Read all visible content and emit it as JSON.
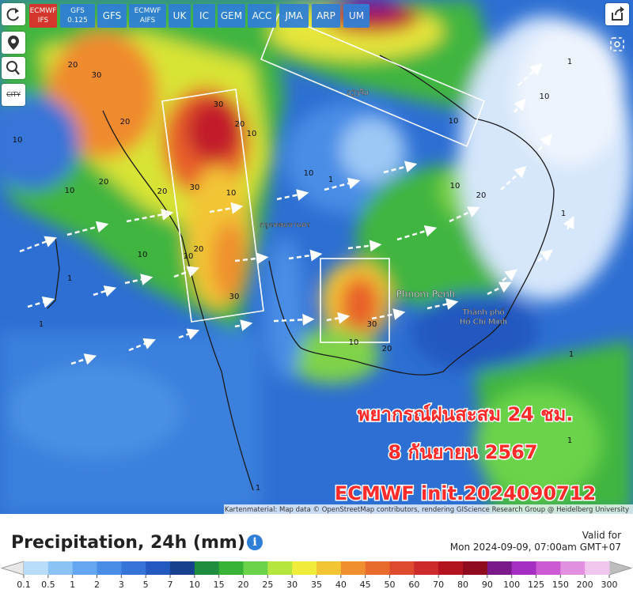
{
  "toolbar": {
    "models": [
      [
        "ECMWF",
        "IFS"
      ],
      [
        "GFS",
        "0.125"
      ],
      [
        "GFS"
      ],
      [
        "ECMWF",
        "AIFS"
      ],
      [
        "UK"
      ],
      [
        "IC"
      ],
      [
        "GEM"
      ],
      [
        "ACC"
      ],
      [
        "JMA"
      ],
      [
        "ARP"
      ],
      [
        "UM"
      ]
    ],
    "city_tool": "CITY"
  },
  "map": {
    "cities": [
      "Phnom Penh",
      "Thành phố",
      "Hồ Chí Minh",
      "กรุงเทพมหานคร",
      "ວຽງຈັນ"
    ],
    "contour_labels": [
      "30",
      "20",
      "20",
      "10",
      "20",
      "10",
      "30",
      "30",
      "20",
      "10",
      "20",
      "20",
      "10",
      "10",
      "30",
      "1",
      "1",
      "30",
      "20",
      "10",
      "10",
      "1",
      "10",
      "10",
      "1",
      "20",
      "10",
      "1",
      "1",
      "1",
      "10",
      "1"
    ],
    "overlay": [
      "พยากรณ์ฝนสะสม 24 ชม.",
      "8 กันยายน 2567",
      "ECMWF init.2024090712"
    ],
    "attribution": "Kartenmaterial: Map data © OpenStreetMap contributors, rendering GIScience Research Group @ Heidelberg University"
  },
  "legend": {
    "title": "Precipitation, 24h (mm)",
    "valid_label": "Valid for",
    "valid_time": "Mon 2024-09-09, 07:00am GMT+07",
    "ticks": [
      0.1,
      0.5,
      1,
      2,
      3,
      5,
      7,
      10,
      15,
      20,
      25,
      30,
      35,
      40,
      45,
      50,
      60,
      70,
      80,
      90,
      100,
      125,
      150,
      200,
      300
    ],
    "colors": [
      "#b9dcfb",
      "#8cc2f6",
      "#64a6ef",
      "#4a8de6",
      "#3774d8",
      "#2459c0",
      "#17408f",
      "#1f8d3d",
      "#38b338",
      "#6ad34a",
      "#b5e640",
      "#f0ec3b",
      "#f3c534",
      "#ef8f2f",
      "#e86a2c",
      "#dd4a2e",
      "#cc2a2b",
      "#b3141f",
      "#8e0c1e",
      "#7a1a8a",
      "#a52fc0",
      "#cc5ad3",
      "#e38fe0",
      "#f1c6ee"
    ],
    "low_color": "#e8e8e8",
    "high_color": "#bdbdbd"
  }
}
